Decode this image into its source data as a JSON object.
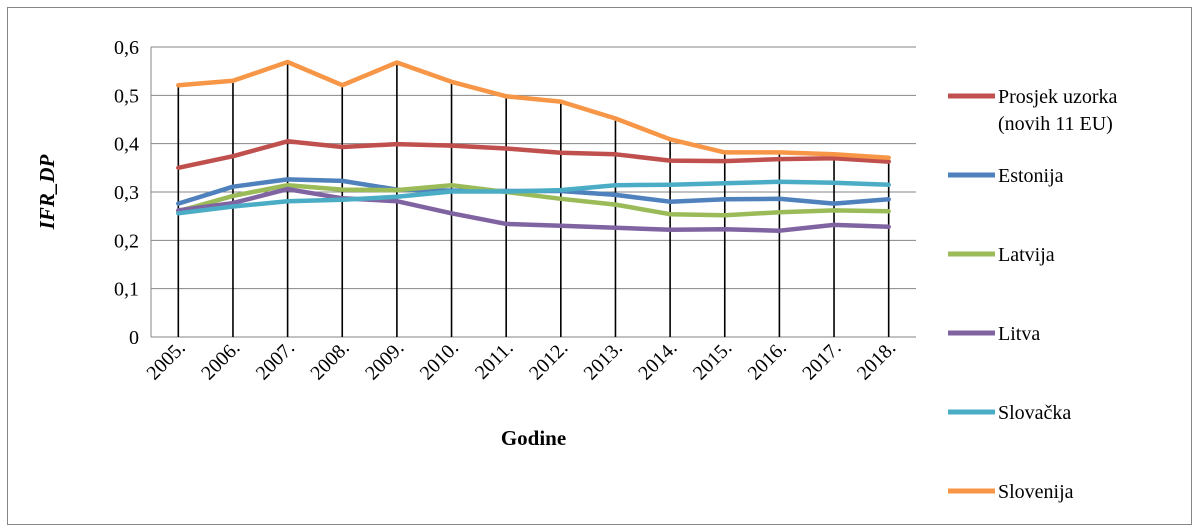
{
  "chart_data": {
    "type": "line",
    "title": "",
    "xlabel": "Godine",
    "ylabel": "IFR_DP",
    "categories": [
      "2005.",
      "2006.",
      "2007.",
      "2008.",
      "2009.",
      "2010.",
      "2011.",
      "2012.",
      "2013.",
      "2014.",
      "2015.",
      "2016.",
      "2017.",
      "2018."
    ],
    "ylim": [
      0,
      0.6
    ],
    "yticks": [
      "0",
      "0,1",
      "0,2",
      "0,3",
      "0,4",
      "0,5",
      "0,6"
    ],
    "grid": true,
    "drop_lines": true,
    "legend_position": "right",
    "series": [
      {
        "name": "Prosjek uzorka (novih 11 EU)",
        "name_lines": [
          "Prosjek uzorka",
          "(novih 11 EU)"
        ],
        "color": "#C0504D",
        "values": [
          0.35,
          0.374,
          0.405,
          0.393,
          0.399,
          0.396,
          0.39,
          0.381,
          0.378,
          0.365,
          0.364,
          0.368,
          0.37,
          0.363
        ]
      },
      {
        "name": "Estonija",
        "name_lines": [
          "Estonija"
        ],
        "color": "#4F81BD",
        "values": [
          0.276,
          0.311,
          0.326,
          0.323,
          0.305,
          0.303,
          0.302,
          0.302,
          0.294,
          0.28,
          0.285,
          0.286,
          0.276,
          0.285
        ]
      },
      {
        "name": "Latvija",
        "name_lines": [
          "Latvija"
        ],
        "color": "#9BBB59",
        "values": [
          0.26,
          0.292,
          0.314,
          0.305,
          0.304,
          0.314,
          0.3,
          0.286,
          0.274,
          0.254,
          0.252,
          0.258,
          0.262,
          0.26
        ]
      },
      {
        "name": "Litva",
        "name_lines": [
          "Litva"
        ],
        "color": "#8064A2",
        "values": [
          0.262,
          0.277,
          0.306,
          0.287,
          0.281,
          0.256,
          0.234,
          0.23,
          0.226,
          0.222,
          0.223,
          0.22,
          0.232,
          0.228
        ]
      },
      {
        "name": "Slovačka",
        "name_lines": [
          "Slovačka"
        ],
        "color": "#4BACC6",
        "values": [
          0.256,
          0.27,
          0.281,
          0.284,
          0.29,
          0.301,
          0.301,
          0.304,
          0.314,
          0.315,
          0.318,
          0.321,
          0.319,
          0.315
        ]
      },
      {
        "name": "Slovenija",
        "name_lines": [
          "Slovenija"
        ],
        "color": "#F79646",
        "values": [
          0.521,
          0.53,
          0.569,
          0.521,
          0.568,
          0.528,
          0.498,
          0.487,
          0.452,
          0.409,
          0.382,
          0.382,
          0.378,
          0.371
        ]
      }
    ]
  }
}
